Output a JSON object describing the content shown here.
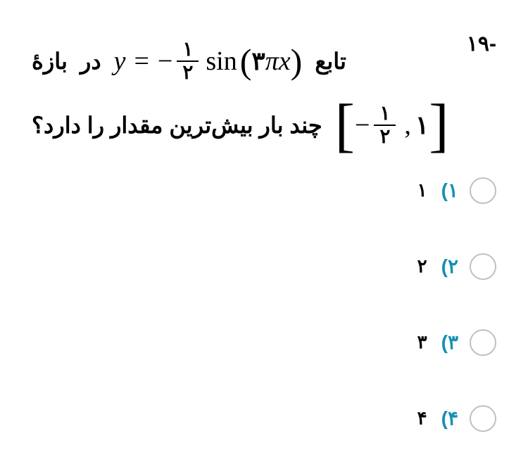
{
  "question_number": "-۱۹",
  "question": {
    "word_tab": "تابع",
    "word_dar": "در",
    "word_bazeh": "بازۀ",
    "rest_question": "چند بار بیش‌ترین مقدار را دارد؟",
    "equation": {
      "y": "y",
      "equals": "=",
      "minus": "−",
      "frac_num": "۱",
      "frac_den": "۲",
      "sin": "sin",
      "paren_open": "(",
      "three": "۳",
      "pi": "π",
      "x": "x",
      "paren_close": ")"
    },
    "interval": {
      "left_bracket": "[",
      "minus": "−",
      "frac_num": "۱",
      "frac_den": "۲",
      "comma": ",",
      "one": "۱",
      "right_bracket": "]"
    }
  },
  "options": [
    {
      "num": "۱)",
      "text": "۱"
    },
    {
      "num": "۲)",
      "text": "۲"
    },
    {
      "num": "۳)",
      "text": "۳"
    },
    {
      "num": "۴)",
      "text": "۴"
    }
  ],
  "colors": {
    "option_num": "#1590b5",
    "radio_border": "#c0c0c0",
    "text": "#000000"
  }
}
